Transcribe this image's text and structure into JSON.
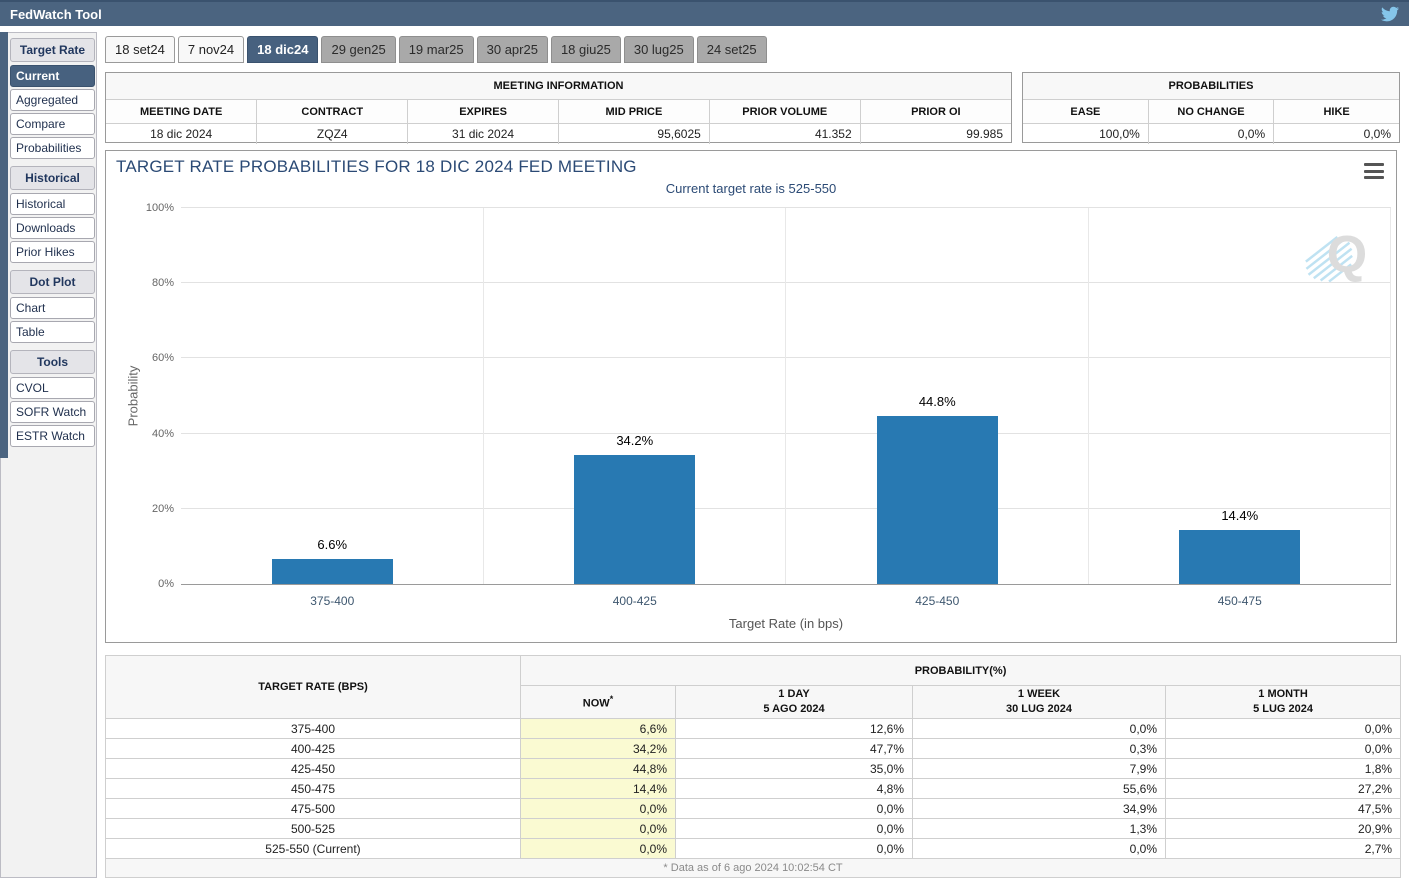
{
  "header": {
    "title": "FedWatch Tool",
    "twitter_icon": "twitter-bird-icon"
  },
  "tabs": [
    {
      "label": "18 set24",
      "style": "light"
    },
    {
      "label": "7 nov24",
      "style": "light"
    },
    {
      "label": "18 dic24",
      "style": "selected"
    },
    {
      "label": "29 gen25",
      "style": "gray"
    },
    {
      "label": "19 mar25",
      "style": "gray"
    },
    {
      "label": "30 apr25",
      "style": "gray"
    },
    {
      "label": "18 giu25",
      "style": "gray"
    },
    {
      "label": "30 lug25",
      "style": "gray"
    },
    {
      "label": "24 set25",
      "style": "gray"
    }
  ],
  "sidebar": {
    "sections": [
      {
        "header": "Target Rate",
        "items": [
          {
            "label": "Current",
            "selected": true
          },
          {
            "label": "Aggregated"
          },
          {
            "label": "Compare"
          },
          {
            "label": "Probabilities"
          }
        ]
      },
      {
        "header": "Historical",
        "items": [
          {
            "label": "Historical"
          },
          {
            "label": "Downloads"
          },
          {
            "label": "Prior Hikes"
          }
        ]
      },
      {
        "header": "Dot Plot",
        "items": [
          {
            "label": "Chart"
          },
          {
            "label": "Table"
          }
        ]
      },
      {
        "header": "Tools",
        "items": [
          {
            "label": "CVOL"
          },
          {
            "label": "SOFR Watch"
          },
          {
            "label": "ESTR Watch"
          }
        ]
      }
    ]
  },
  "meeting_info": {
    "title": "MEETING INFORMATION",
    "columns": [
      "MEETING DATE",
      "CONTRACT",
      "EXPIRES",
      "MID PRICE",
      "PRIOR VOLUME",
      "PRIOR OI"
    ],
    "values": [
      "18 dic 2024",
      "ZQZ4",
      "31 dic 2024",
      "95,6025",
      "41.352",
      "99.985"
    ]
  },
  "probabilities_summary": {
    "title": "PROBABILITIES",
    "columns": [
      "EASE",
      "NO CHANGE",
      "HIKE"
    ],
    "values": [
      "100,0%",
      "0,0%",
      "0,0%"
    ]
  },
  "chart_data": {
    "type": "bar",
    "title": "TARGET RATE PROBABILITIES FOR 18 DIC 2024 FED MEETING",
    "subtitle": "Current target rate is 525-550",
    "xlabel": "Target Rate (in bps)",
    "ylabel": "Probability",
    "categories": [
      "375-400",
      "400-425",
      "425-450",
      "450-475"
    ],
    "values": [
      6.6,
      34.2,
      44.8,
      14.4
    ],
    "value_labels": [
      "6.6%",
      "34.2%",
      "44.8%",
      "14.4%"
    ],
    "ylim": [
      0,
      100
    ],
    "ytick_values": [
      0,
      20,
      40,
      60,
      80,
      100
    ],
    "ytick_labels": [
      "0%",
      "20%",
      "40%",
      "60%",
      "80%",
      "100%"
    ],
    "grid": true,
    "legend": "none",
    "bar_color": "#2879b2",
    "watermark_letter": "Q",
    "menu_icon": "hamburger-menu-icon"
  },
  "probability_table": {
    "rate_header": "TARGET RATE (BPS)",
    "group_header": "PROBABILITY(%)",
    "now_header": "NOW",
    "now_superscript": "*",
    "history_headers": [
      {
        "line1": "1 DAY",
        "line2": "5 AGO 2024"
      },
      {
        "line1": "1 WEEK",
        "line2": "30 LUG 2024"
      },
      {
        "line1": "1 MONTH",
        "line2": "5 LUG 2024"
      }
    ],
    "rows": [
      {
        "rate": "375-400",
        "now": "6,6%",
        "day": "12,6%",
        "week": "0,0%",
        "month": "0,0%"
      },
      {
        "rate": "400-425",
        "now": "34,2%",
        "day": "47,7%",
        "week": "0,3%",
        "month": "0,0%"
      },
      {
        "rate": "425-450",
        "now": "44,8%",
        "day": "35,0%",
        "week": "7,9%",
        "month": "1,8%"
      },
      {
        "rate": "450-475",
        "now": "14,4%",
        "day": "4,8%",
        "week": "55,6%",
        "month": "27,2%"
      },
      {
        "rate": "475-500",
        "now": "0,0%",
        "day": "0,0%",
        "week": "34,9%",
        "month": "47,5%"
      },
      {
        "rate": "500-525",
        "now": "0,0%",
        "day": "0,0%",
        "week": "1,3%",
        "month": "20,9%"
      },
      {
        "rate": "525-550 (Current)",
        "now": "0,0%",
        "day": "0,0%",
        "week": "0,0%",
        "month": "2,7%"
      }
    ],
    "footnote": "* Data as of 6 ago 2024 10:02:54 CT"
  },
  "colors": {
    "header_bar": "#4b6480",
    "selected_tab": "#47617f",
    "bar": "#2879b2",
    "now_column_bg": "#fafad2",
    "twitter_blue": "#85c5ea",
    "chart_title_text": "#2b4a75"
  }
}
